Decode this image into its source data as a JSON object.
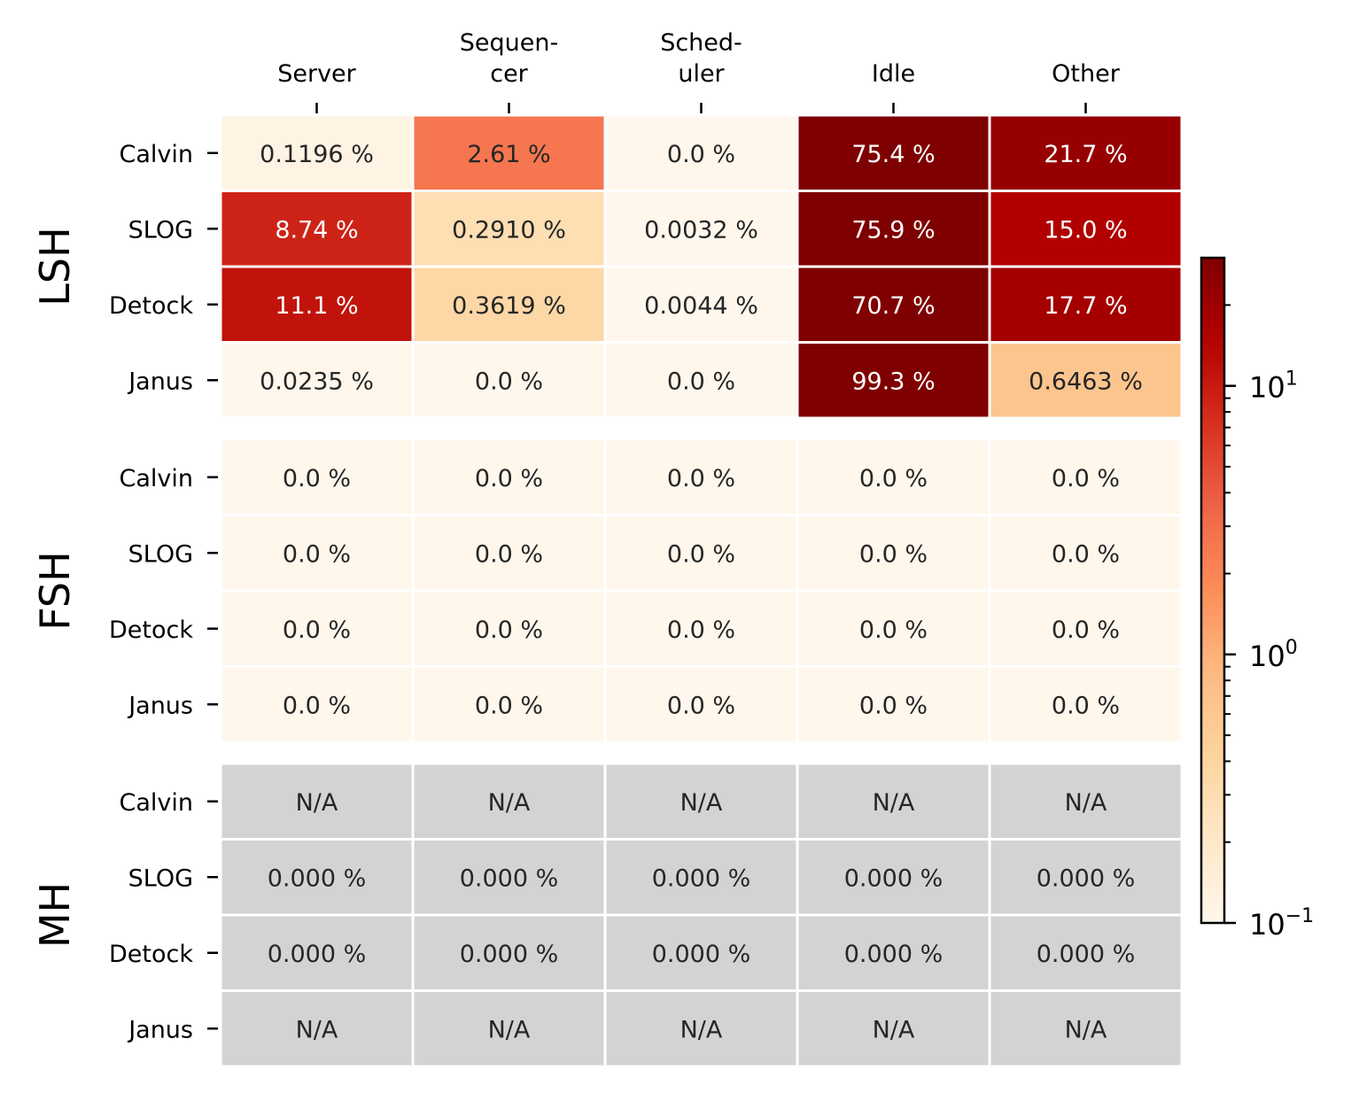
{
  "chart_data": {
    "type": "heatmap",
    "columns": [
      [
        "Server"
      ],
      [
        "Sequen-",
        "cer"
      ],
      [
        "Sched-",
        "uler"
      ],
      [
        "Idle"
      ],
      [
        "Other"
      ]
    ],
    "groups": [
      {
        "name": "LSH",
        "rows": [
          {
            "label": "Calvin",
            "cells": [
              {
                "text": "0.1196 %",
                "value": 0.1196
              },
              {
                "text": "2.61 %",
                "value": 2.61
              },
              {
                "text": "0.0 %",
                "value": 0.0
              },
              {
                "text": "75.4 %",
                "value": 75.4
              },
              {
                "text": "21.7 %",
                "value": 21.7
              }
            ]
          },
          {
            "label": "SLOG",
            "cells": [
              {
                "text": "8.74 %",
                "value": 8.74
              },
              {
                "text": "0.2910 %",
                "value": 0.291
              },
              {
                "text": "0.0032 %",
                "value": 0.0032
              },
              {
                "text": "75.9 %",
                "value": 75.9
              },
              {
                "text": "15.0 %",
                "value": 15.0
              }
            ]
          },
          {
            "label": "Detock",
            "cells": [
              {
                "text": "11.1 %",
                "value": 11.1
              },
              {
                "text": "0.3619 %",
                "value": 0.3619
              },
              {
                "text": "0.0044 %",
                "value": 0.0044
              },
              {
                "text": "70.7 %",
                "value": 70.7
              },
              {
                "text": "17.7 %",
                "value": 17.7
              }
            ]
          },
          {
            "label": "Janus",
            "cells": [
              {
                "text": "0.0235 %",
                "value": 0.0235
              },
              {
                "text": "0.0 %",
                "value": 0.0
              },
              {
                "text": "0.0 %",
                "value": 0.0
              },
              {
                "text": "99.3 %",
                "value": 99.3
              },
              {
                "text": "0.6463 %",
                "value": 0.6463
              }
            ]
          }
        ]
      },
      {
        "name": "FSH",
        "rows": [
          {
            "label": "Calvin",
            "cells": [
              {
                "text": "0.0 %",
                "value": 0.0
              },
              {
                "text": "0.0 %",
                "value": 0.0
              },
              {
                "text": "0.0 %",
                "value": 0.0
              },
              {
                "text": "0.0 %",
                "value": 0.0
              },
              {
                "text": "0.0 %",
                "value": 0.0
              }
            ]
          },
          {
            "label": "SLOG",
            "cells": [
              {
                "text": "0.0 %",
                "value": 0.0
              },
              {
                "text": "0.0 %",
                "value": 0.0
              },
              {
                "text": "0.0 %",
                "value": 0.0
              },
              {
                "text": "0.0 %",
                "value": 0.0
              },
              {
                "text": "0.0 %",
                "value": 0.0
              }
            ]
          },
          {
            "label": "Detock",
            "cells": [
              {
                "text": "0.0 %",
                "value": 0.0
              },
              {
                "text": "0.0 %",
                "value": 0.0
              },
              {
                "text": "0.0 %",
                "value": 0.0
              },
              {
                "text": "0.0 %",
                "value": 0.0
              },
              {
                "text": "0.0 %",
                "value": 0.0
              }
            ]
          },
          {
            "label": "Janus",
            "cells": [
              {
                "text": "0.0 %",
                "value": 0.0
              },
              {
                "text": "0.0 %",
                "value": 0.0
              },
              {
                "text": "0.0 %",
                "value": 0.0
              },
              {
                "text": "0.0 %",
                "value": 0.0
              },
              {
                "text": "0.0 %",
                "value": 0.0
              }
            ]
          }
        ]
      },
      {
        "name": "MH",
        "rows": [
          {
            "label": "Calvin",
            "cells": [
              {
                "text": "N/A",
                "value": null
              },
              {
                "text": "N/A",
                "value": null
              },
              {
                "text": "N/A",
                "value": null
              },
              {
                "text": "N/A",
                "value": null
              },
              {
                "text": "N/A",
                "value": null
              }
            ]
          },
          {
            "label": "SLOG",
            "cells": [
              {
                "text": "0.000 %",
                "value": null
              },
              {
                "text": "0.000 %",
                "value": null
              },
              {
                "text": "0.000 %",
                "value": null
              },
              {
                "text": "0.000 %",
                "value": null
              },
              {
                "text": "0.000 %",
                "value": null
              }
            ]
          },
          {
            "label": "Detock",
            "cells": [
              {
                "text": "0.000 %",
                "value": null
              },
              {
                "text": "0.000 %",
                "value": null
              },
              {
                "text": "0.000 %",
                "value": null
              },
              {
                "text": "0.000 %",
                "value": null
              },
              {
                "text": "0.000 %",
                "value": null
              }
            ]
          },
          {
            "label": "Janus",
            "cells": [
              {
                "text": "N/A",
                "value": null
              },
              {
                "text": "N/A",
                "value": null
              },
              {
                "text": "N/A",
                "value": null
              },
              {
                "text": "N/A",
                "value": null
              },
              {
                "text": "N/A",
                "value": null
              }
            ]
          }
        ]
      }
    ],
    "colorbar": {
      "scale": "log",
      "range": [
        0.1,
        30
      ],
      "colormap": "OrRd",
      "tick_labels": [
        {
          "base": "10",
          "exp": "1",
          "value": 10
        },
        {
          "base": "10",
          "exp": "0",
          "value": 1
        },
        {
          "base": "10",
          "exp": "−1",
          "value": 0.1
        }
      ]
    },
    "na_color": "#d3d3d3",
    "grid_line_color": "#ffffff"
  }
}
